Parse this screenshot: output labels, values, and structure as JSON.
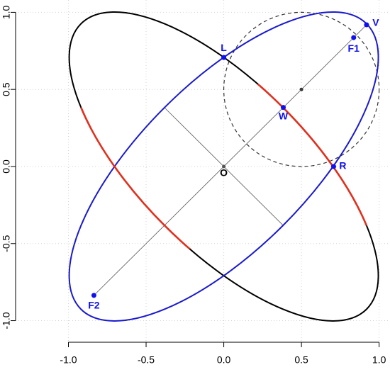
{
  "chart_data": {
    "type": "geometry",
    "xlim": [
      -1.34,
      1.07
    ],
    "ylim": [
      -1.14,
      1.08
    ],
    "xticks": [
      {
        "value": -1,
        "label": "-1.0"
      },
      -0.5,
      {
        "value": 0,
        "label": "0.0"
      },
      0.5,
      {
        "value": 1,
        "label": "1.0"
      }
    ],
    "yticks": [
      {
        "value": -1,
        "label": "-1.0"
      },
      -0.5,
      {
        "value": 0,
        "label": "0.0"
      },
      0.5,
      {
        "value": 1,
        "label": "1.0"
      }
    ],
    "grid": true,
    "ellipses": [
      {
        "center": [
          0,
          0
        ],
        "a": 1.3,
        "b": 0.542,
        "angle": -45,
        "color": "#000000"
      },
      {
        "center": [
          0,
          0
        ],
        "a": 1.3,
        "b": 0.542,
        "angle": 45,
        "color": "#1a1acd"
      }
    ],
    "highlight_color": "#e0301e",
    "circle": {
      "center": [
        0.5,
        0.5
      ],
      "r": 0.5,
      "color": "#333333"
    },
    "segments": [
      {
        "from": [
          -0.836,
          -0.836
        ],
        "to": [
          0.919,
          0.919
        ]
      },
      {
        "from": [
          -0.383,
          0.383
        ],
        "to": [
          0.383,
          -0.383
        ]
      }
    ],
    "segment_color": "#555555",
    "points": {
      "labels": [
        "L",
        "R",
        "W",
        "F1",
        "V",
        "F2"
      ],
      "x": [
        0,
        0.707,
        0.383,
        0.836,
        0.919,
        -0.836
      ],
      "y": [
        0.707,
        0,
        0.383,
        0.836,
        0.919,
        -0.836
      ],
      "color": "#1010ee"
    },
    "origin": {
      "label": "O",
      "x": 0,
      "y": 0,
      "color": "#555555"
    }
  }
}
